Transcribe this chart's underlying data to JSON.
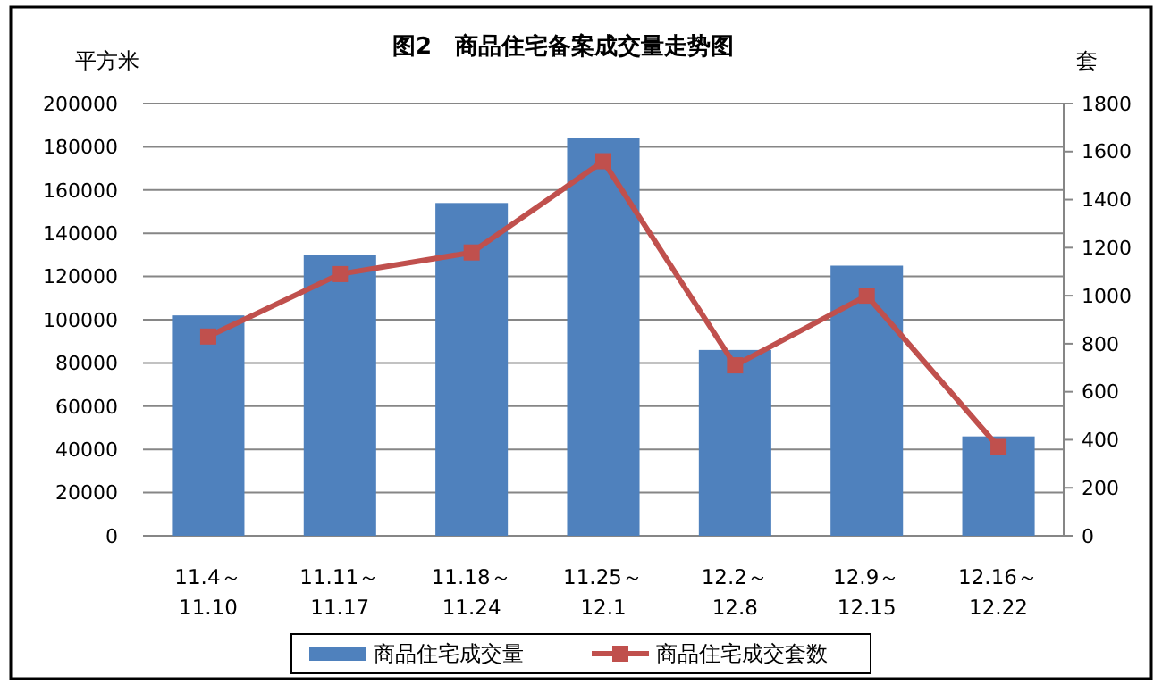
{
  "chart_data": {
    "type": "bar",
    "title": "图2　商品住宅备案成交量走势图",
    "ylabel": "平方米",
    "y2label": "套",
    "categories": [
      "11.4～11.10",
      "11.11～11.17",
      "11.18～11.24",
      "11.25～12.1",
      "12.2～12.8",
      "12.9～12.15",
      "12.16～12.22"
    ],
    "series": [
      {
        "name": "商品住宅成交量",
        "color": "#4f81bd",
        "values": [
          102000,
          130000,
          154000,
          184000,
          86000,
          125000,
          46000
        ]
      },
      {
        "name": "商品住宅成交套数",
        "type": "line",
        "axis": "y2",
        "color": "#c0504d",
        "marker": "square",
        "values": [
          830,
          1090,
          1180,
          1560,
          710,
          1000,
          370
        ]
      }
    ],
    "ylim": [
      0,
      200000
    ],
    "yticks": [
      0,
      20000,
      40000,
      60000,
      80000,
      100000,
      120000,
      140000,
      160000,
      180000,
      200000
    ],
    "y2lim": [
      0,
      1800
    ],
    "y2ticks": [
      0,
      200,
      400,
      600,
      800,
      1000,
      1200,
      1400,
      1600,
      1800
    ],
    "grid": "y",
    "legend": "bottom"
  }
}
